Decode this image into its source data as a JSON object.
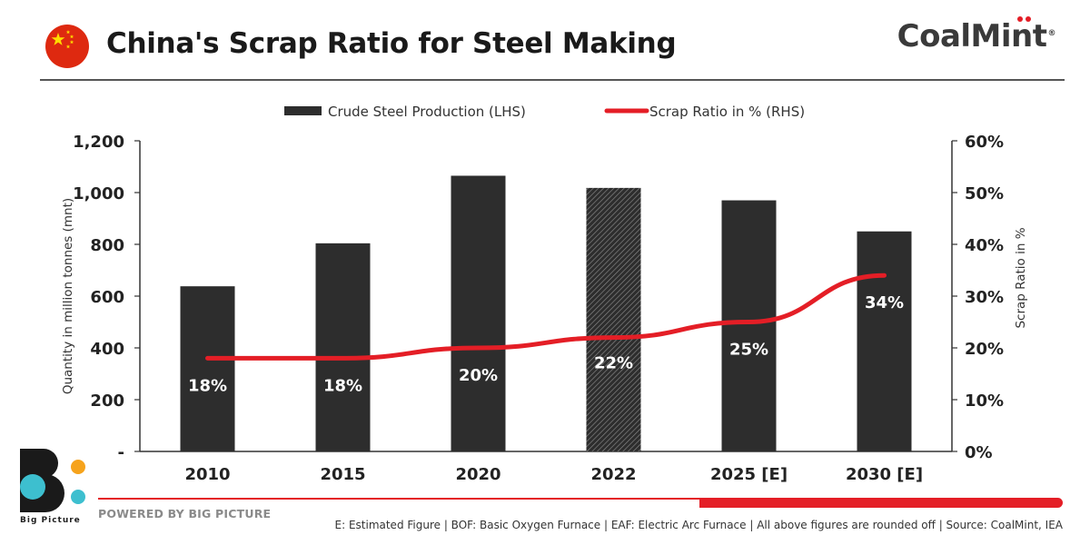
{
  "header": {
    "title": "China's Scrap Ratio for Steel Making",
    "brand": "CoalMint",
    "brand_mark": "®",
    "flag_icon": "china-flag-icon"
  },
  "colors": {
    "bar": "#2d2d2d",
    "line": "#e41e26",
    "brand_red": "#e41e26",
    "bp_orange": "#f6a31c",
    "bp_teal": "#3dbfcf"
  },
  "chart_data": {
    "type": "bar",
    "title": "China's Scrap Ratio for Steel Making",
    "categories": [
      "2010",
      "2015",
      "2020",
      "2022",
      "2025 [E]",
      "2030 [E]"
    ],
    "series": [
      {
        "name": "Crude Steel Production (LHS)",
        "type": "bar",
        "axis": "left",
        "values": [
          638,
          804,
          1065,
          1018,
          970,
          850
        ],
        "hatched_category": "2022"
      },
      {
        "name": "Scrap Ratio in % (RHS)",
        "type": "line",
        "axis": "right",
        "values": [
          18,
          18,
          20,
          22,
          25,
          34
        ],
        "data_labels": [
          "18%",
          "18%",
          "20%",
          "22%",
          "25%",
          "34%"
        ]
      }
    ],
    "ylabel": "Quantity in million tonnes (mnt)",
    "y2label": "Scrap Ratio in %",
    "ylim": [
      0,
      1200
    ],
    "y2lim": [
      0,
      60
    ],
    "y_ticks": [
      "-",
      "200",
      "400",
      "600",
      "800",
      "1,000",
      "1,200"
    ],
    "y2_ticks": [
      "0%",
      "10%",
      "20%",
      "30%",
      "40%",
      "50%",
      "60%"
    ],
    "legend_position": "top-center",
    "grid": false
  },
  "footer": {
    "logo_text": "Big Picture",
    "powered": "POWERED BY BIG PICTURE",
    "note": "E: Estimated Figure | BOF: Basic Oxygen Furnace | EAF: Electric Arc Furnace | All above figures are rounded off | Source: CoalMint, IEA"
  }
}
